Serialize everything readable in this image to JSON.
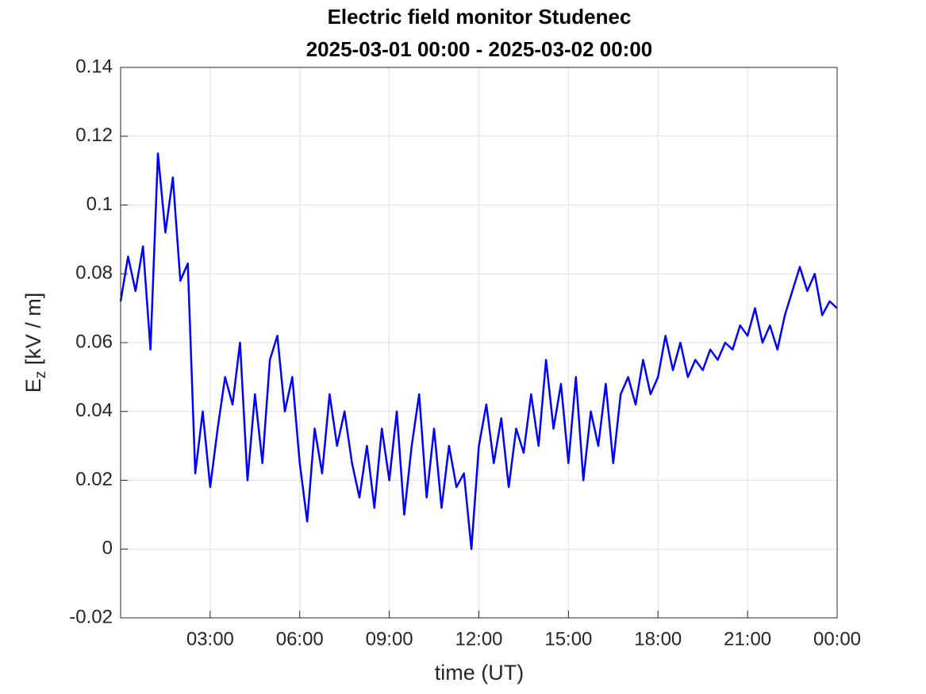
{
  "chart_data": {
    "type": "line",
    "title": [
      "Electric field monitor Studenec",
      "2025-03-01 00:00 - 2025-03-02 00:00"
    ],
    "xlabel": "time (UT)",
    "ylabel": {
      "main": "E",
      "sub": "z",
      "rest": " [kV / m]"
    },
    "x": [
      0,
      0.25,
      0.5,
      0.75,
      1,
      1.25,
      1.5,
      1.75,
      2,
      2.25,
      2.5,
      2.75,
      3,
      3.25,
      3.5,
      3.75,
      4,
      4.25,
      4.5,
      4.75,
      5,
      5.25,
      5.5,
      5.75,
      6,
      6.25,
      6.5,
      6.75,
      7,
      7.25,
      7.5,
      7.75,
      8,
      8.25,
      8.5,
      8.75,
      9,
      9.25,
      9.5,
      9.75,
      10,
      10.25,
      10.5,
      10.75,
      11,
      11.25,
      11.5,
      11.75,
      12,
      12.25,
      12.5,
      12.75,
      13,
      13.25,
      13.5,
      13.75,
      14,
      14.25,
      14.5,
      14.75,
      15,
      15.25,
      15.5,
      15.75,
      16,
      16.25,
      16.5,
      16.75,
      17,
      17.25,
      17.5,
      17.75,
      18,
      18.25,
      18.5,
      18.75,
      19,
      19.25,
      19.5,
      19.75,
      20,
      20.25,
      20.5,
      20.75,
      21,
      21.25,
      21.5,
      21.75,
      22,
      22.25,
      22.5,
      22.75,
      23,
      23.25,
      23.5,
      23.75,
      24
    ],
    "series": [
      {
        "name": "Ez",
        "color": "#0000ff",
        "values": [
          0.072,
          0.085,
          0.075,
          0.088,
          0.058,
          0.115,
          0.092,
          0.108,
          0.078,
          0.083,
          0.022,
          0.04,
          0.018,
          0.035,
          0.05,
          0.042,
          0.06,
          0.02,
          0.045,
          0.025,
          0.055,
          0.062,
          0.04,
          0.05,
          0.025,
          0.008,
          0.035,
          0.022,
          0.045,
          0.03,
          0.04,
          0.025,
          0.015,
          0.03,
          0.012,
          0.035,
          0.02,
          0.04,
          0.01,
          0.03,
          0.045,
          0.015,
          0.035,
          0.012,
          0.03,
          0.018,
          0.022,
          0.0,
          0.03,
          0.042,
          0.025,
          0.038,
          0.018,
          0.035,
          0.028,
          0.045,
          0.03,
          0.055,
          0.035,
          0.048,
          0.025,
          0.05,
          0.02,
          0.04,
          0.03,
          0.048,
          0.025,
          0.045,
          0.05,
          0.042,
          0.055,
          0.045,
          0.05,
          0.062,
          0.052,
          0.06,
          0.05,
          0.055,
          0.052,
          0.058,
          0.055,
          0.06,
          0.058,
          0.065,
          0.062,
          0.07,
          0.06,
          0.065,
          0.058,
          0.068,
          0.075,
          0.082,
          0.075,
          0.08,
          0.068,
          0.072,
          0.07
        ]
      }
    ],
    "xlim": [
      0,
      24
    ],
    "xticks": [
      {
        "value": 3,
        "label": "03:00"
      },
      {
        "value": 6,
        "label": "06:00"
      },
      {
        "value": 9,
        "label": "09:00"
      },
      {
        "value": 12,
        "label": "12:00"
      },
      {
        "value": 15,
        "label": "15:00"
      },
      {
        "value": 18,
        "label": "18:00"
      },
      {
        "value": 21,
        "label": "21:00"
      },
      {
        "value": 24,
        "label": "00:00"
      }
    ],
    "ylim": [
      -0.02,
      0.14
    ],
    "yticks": [
      -0.02,
      0,
      0.02,
      0.04,
      0.06,
      0.08,
      0.1,
      0.12,
      0.14
    ],
    "grid": true
  }
}
